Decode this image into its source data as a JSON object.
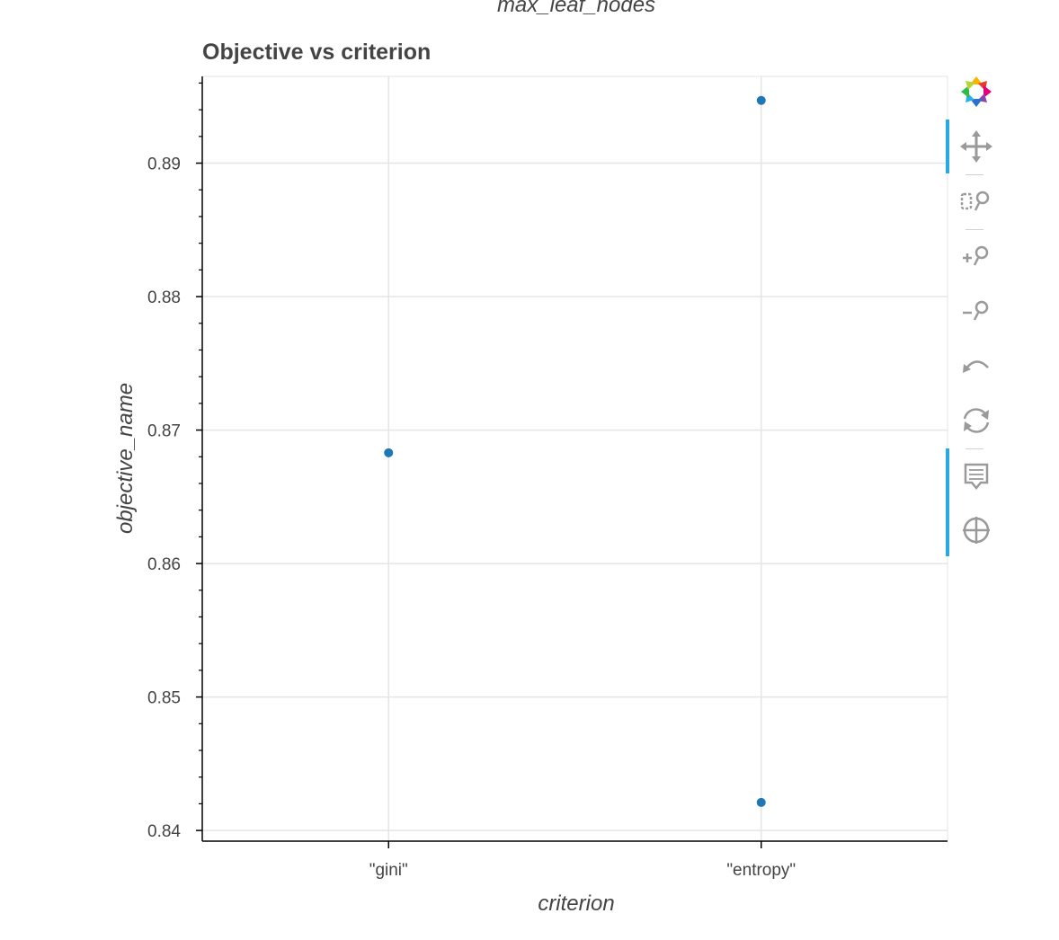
{
  "header": {
    "cut_title": "max_leaf_nodes"
  },
  "chart_data": {
    "type": "scatter",
    "title": "Objective vs criterion",
    "xlabel": "criterion",
    "ylabel": "objective_name",
    "categories": [
      "\"gini\"",
      "\"entropy\""
    ],
    "points": [
      {
        "x": "\"gini\"",
        "y": 0.8683
      },
      {
        "x": "\"entropy\"",
        "y": 0.8947
      },
      {
        "x": "\"entropy\"",
        "y": 0.8421
      }
    ],
    "ylim": [
      0.8392,
      0.8965
    ],
    "yticks": [
      0.84,
      0.85,
      0.86,
      0.87,
      0.88,
      0.89
    ],
    "ytick_labels": [
      "0.84",
      "0.85",
      "0.86",
      "0.87",
      "0.88",
      "0.89"
    ],
    "grid": true,
    "point_color": "#1f77b4"
  },
  "toolbar": {
    "tools": [
      {
        "name": "bokeh-logo-icon"
      },
      {
        "name": "pan-icon"
      },
      {
        "name": "box-zoom-icon"
      },
      {
        "name": "zoom-in-icon"
      },
      {
        "name": "zoom-out-icon"
      },
      {
        "name": "undo-icon"
      },
      {
        "name": "reset-icon"
      },
      {
        "name": "hover-icon"
      },
      {
        "name": "crosshair-icon"
      }
    ]
  }
}
